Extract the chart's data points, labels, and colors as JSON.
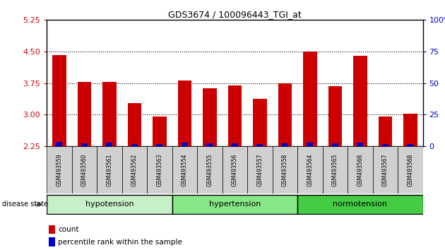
{
  "title": "GDS3674 / 100096443_TGI_at",
  "samples": [
    "GSM493559",
    "GSM493560",
    "GSM493561",
    "GSM493562",
    "GSM493563",
    "GSM493554",
    "GSM493555",
    "GSM493556",
    "GSM493557",
    "GSM493558",
    "GSM493564",
    "GSM493565",
    "GSM493566",
    "GSM493567",
    "GSM493568"
  ],
  "count_values": [
    4.42,
    3.78,
    3.78,
    3.28,
    2.95,
    3.82,
    3.62,
    3.7,
    3.38,
    3.75,
    4.5,
    3.68,
    4.4,
    2.95,
    3.02
  ],
  "percentile_values": [
    0.1,
    0.07,
    0.09,
    0.06,
    0.05,
    0.09,
    0.07,
    0.07,
    0.06,
    0.07,
    0.09,
    0.07,
    0.09,
    0.05,
    0.06
  ],
  "bar_bottom": 2.25,
  "ylim_left": [
    2.25,
    5.25
  ],
  "ylim_right": [
    0,
    100
  ],
  "yticks_left": [
    2.25,
    3.0,
    3.75,
    4.5,
    5.25
  ],
  "yticks_right": [
    0,
    25,
    50,
    75,
    100
  ],
  "groups": [
    {
      "label": "hypotension",
      "start": 0,
      "end": 5,
      "color": "#C8F0C8"
    },
    {
      "label": "hypertension",
      "start": 5,
      "end": 10,
      "color": "#88E888"
    },
    {
      "label": "normotension",
      "start": 10,
      "end": 15,
      "color": "#44CC44"
    }
  ],
  "bar_color_red": "#CC0000",
  "bar_color_blue": "#0000CC",
  "axis_left_color": "#CC0000",
  "axis_right_color": "#0000CC",
  "disease_state_label": "disease state",
  "bar_width": 0.55,
  "blue_bar_width": 0.25,
  "tick_label_bg": "#D0D0D0"
}
